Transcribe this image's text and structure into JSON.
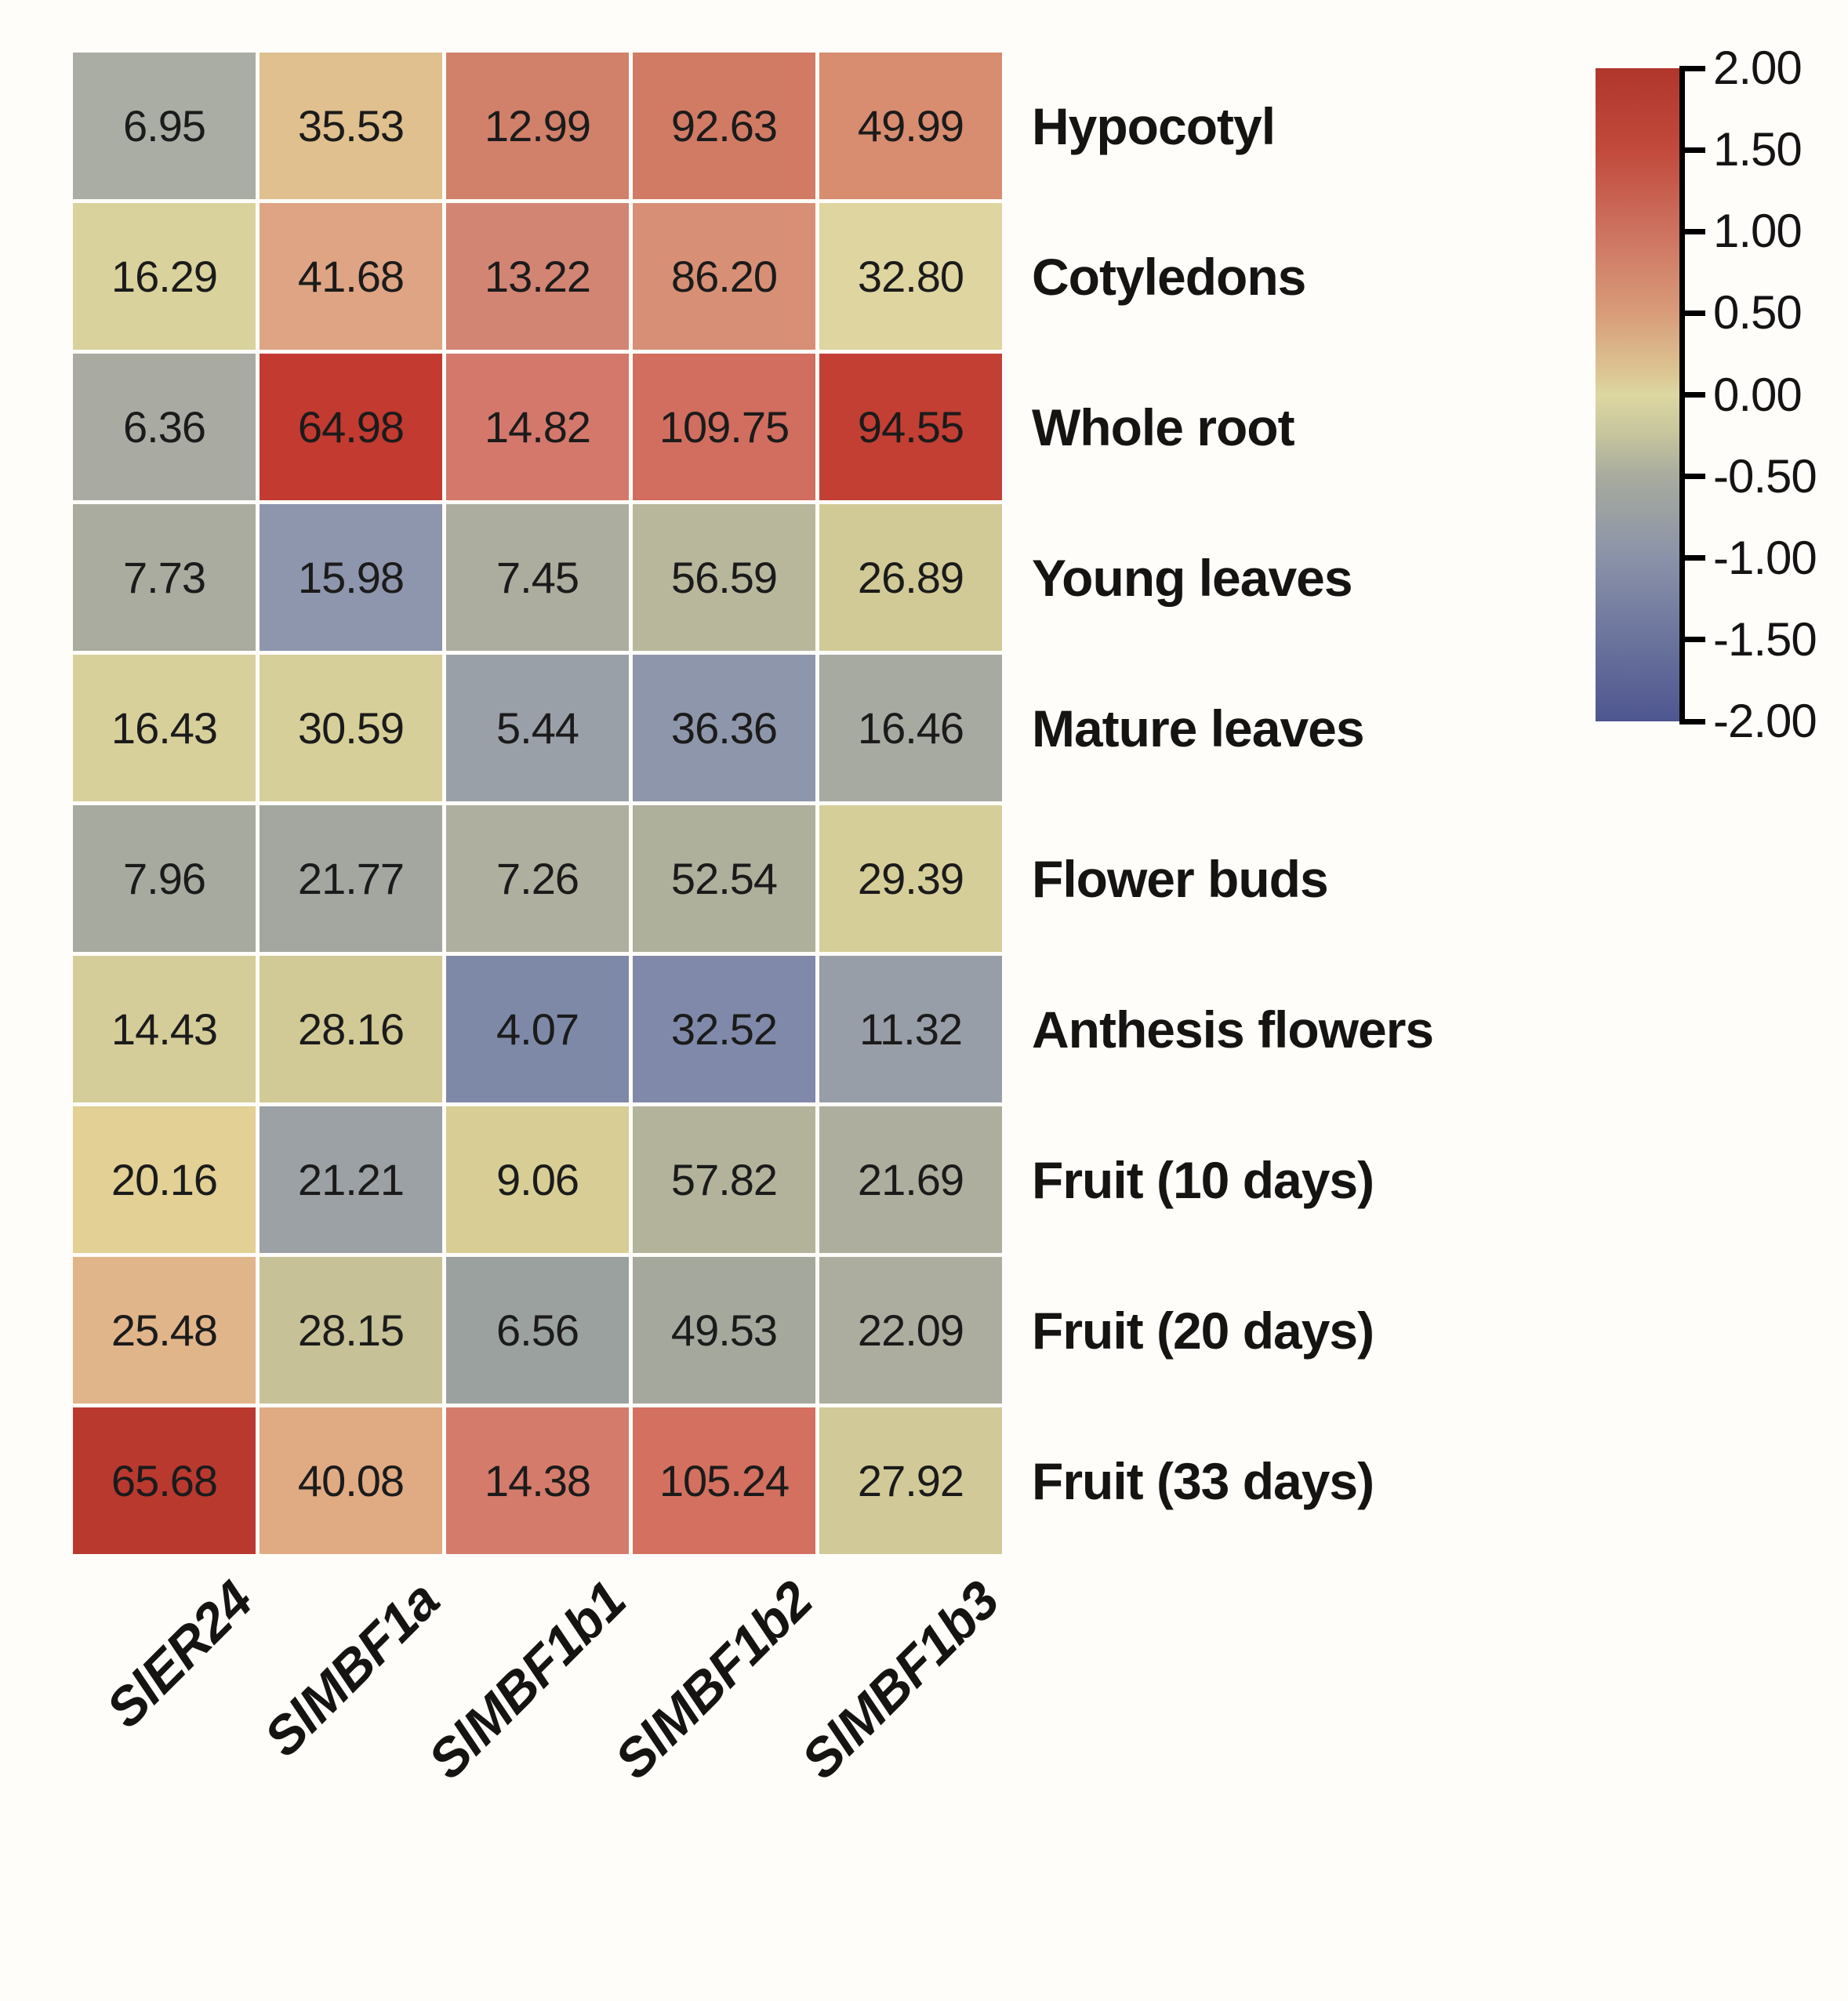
{
  "chart_data": {
    "type": "heatmap",
    "columns": [
      "SlER24",
      "SlMBF1a",
      "SlMBF1b1",
      "SlMBF1b2",
      "SlMBF1b3"
    ],
    "rows": [
      "Hypocotyl",
      "Cotyledons",
      "Whole root",
      "Young leaves",
      "Mature leaves",
      "Flower buds",
      "Anthesis flowers",
      "Fruit (10 days)",
      "Fruit (20 days)",
      "Fruit (33 days)"
    ],
    "values": [
      [
        6.95,
        35.53,
        12.99,
        92.63,
        49.99
      ],
      [
        16.29,
        41.68,
        13.22,
        86.2,
        32.8
      ],
      [
        6.36,
        64.98,
        14.82,
        109.75,
        94.55
      ],
      [
        7.73,
        15.98,
        7.45,
        56.59,
        26.89
      ],
      [
        16.43,
        30.59,
        5.44,
        36.36,
        16.46
      ],
      [
        7.96,
        21.77,
        7.26,
        52.54,
        29.39
      ],
      [
        14.43,
        28.16,
        4.07,
        32.52,
        11.32
      ],
      [
        20.16,
        21.21,
        9.06,
        57.82,
        21.69
      ],
      [
        25.48,
        28.15,
        6.56,
        49.53,
        22.09
      ],
      [
        65.68,
        40.08,
        14.38,
        105.24,
        27.92
      ]
    ],
    "cell_labels": [
      [
        "6.95",
        "35.53",
        "12.99",
        "92.63",
        "49.99"
      ],
      [
        "16.29",
        "41.68",
        "13.22",
        "86.20",
        "32.80"
      ],
      [
        "6.36",
        "64.98",
        "14.82",
        "109.75",
        "94.55"
      ],
      [
        "7.73",
        "15.98",
        "7.45",
        "56.59",
        "26.89"
      ],
      [
        "16.43",
        "30.59",
        "5.44",
        "36.36",
        "16.46"
      ],
      [
        "7.96",
        "21.77",
        "7.26",
        "52.54",
        "29.39"
      ],
      [
        "14.43",
        "28.16",
        "4.07",
        "32.52",
        "11.32"
      ],
      [
        "20.16",
        "21.21",
        "9.06",
        "57.82",
        "21.69"
      ],
      [
        "25.48",
        "28.15",
        "6.56",
        "49.53",
        "22.09"
      ],
      [
        "65.68",
        "40.08",
        "14.38",
        "105.24",
        "27.92"
      ]
    ],
    "cell_colors": [
      [
        "#a9ada3",
        "#dfc08e",
        "#d1806a",
        "#d17b64",
        "#d88c70"
      ],
      [
        "#d9d29c",
        "#dea483",
        "#d38573",
        "#d79075",
        "#ded5a0"
      ],
      [
        "#a9aba3",
        "#c23a30",
        "#d4786c",
        "#d16e5f",
        "#c33f34"
      ],
      [
        "#a9ac9f",
        "#8e96ad",
        "#acad9e",
        "#b8b79c",
        "#d1ca96"
      ],
      [
        "#d8d09b",
        "#d7cf99",
        "#99a0a8",
        "#8e96ab",
        "#a7aaa1"
      ],
      [
        "#a7aa9f",
        "#a3a7a0",
        "#aeaf9e",
        "#afb09c",
        "#d6ce99"
      ],
      [
        "#d5cd99",
        "#d1ca96",
        "#7e89a7",
        "#8089a9",
        "#989ea7"
      ],
      [
        "#e2d094",
        "#9ba1a4",
        "#d8ce95",
        "#b3b39b",
        "#adae9e"
      ],
      [
        "#e1b58a",
        "#c7c197",
        "#9aa19f",
        "#a5a89d",
        "#acad9e"
      ],
      [
        "#ba392f",
        "#e0aa83",
        "#d47b6b",
        "#d3705f",
        "#d1ca98"
      ]
    ],
    "colorbar": {
      "min": -2.0,
      "max": 2.0,
      "ticks": [
        "2.00",
        "1.50",
        "1.00",
        "0.50",
        "0.00",
        "-0.50",
        "-1.00",
        "-1.50",
        "-2.00"
      ],
      "gradient_stops": [
        {
          "pos": 0.0,
          "color": "#b0362c"
        },
        {
          "pos": 0.125,
          "color": "#c14a3c"
        },
        {
          "pos": 0.25,
          "color": "#cd7260"
        },
        {
          "pos": 0.375,
          "color": "#d89c79"
        },
        {
          "pos": 0.47,
          "color": "#dcc794"
        },
        {
          "pos": 0.5,
          "color": "#ddd7a1"
        },
        {
          "pos": 0.56,
          "color": "#c6c59d"
        },
        {
          "pos": 0.625,
          "color": "#a8ab9e"
        },
        {
          "pos": 0.75,
          "color": "#8a92a9"
        },
        {
          "pos": 0.875,
          "color": "#6b749c"
        },
        {
          "pos": 1.0,
          "color": "#4e5690"
        }
      ],
      "legend_position": "right"
    },
    "title": "",
    "grid": false
  }
}
